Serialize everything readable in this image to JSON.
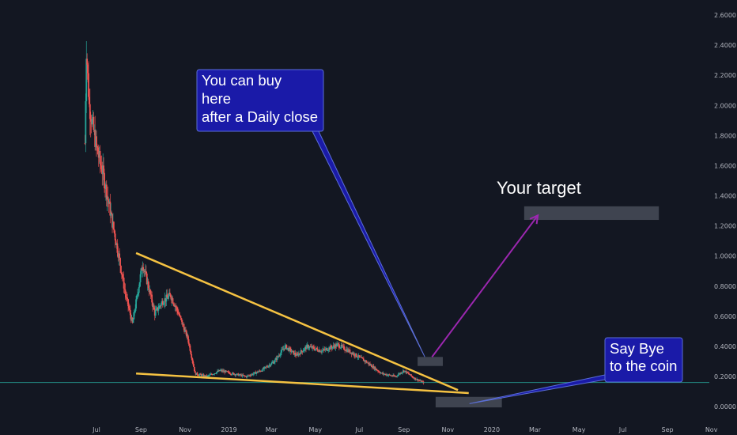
{
  "chart_data": {
    "type": "candlestick",
    "y_ticks": [
      "2.6000",
      "2.4000",
      "2.2000",
      "2.0000",
      "1.8000",
      "1.6000",
      "1.4000",
      "1.2000",
      "1.0000",
      "0.8000",
      "0.6000",
      "0.4000",
      "0.2000",
      "0.0000"
    ],
    "y_tick_values": [
      2.6,
      2.4,
      2.2,
      2.0,
      1.8,
      1.6,
      1.4,
      1.2,
      1.0,
      0.8,
      0.6,
      0.4,
      0.2,
      0.0
    ],
    "ylim": [
      -0.12,
      2.7
    ],
    "x_ticks": [
      {
        "label": "Jul",
        "date": "2018-07-01"
      },
      {
        "label": "Sep",
        "date": "2018-09-01"
      },
      {
        "label": "Nov",
        "date": "2018-11-01"
      },
      {
        "label": "2019",
        "date": "2019-01-01"
      },
      {
        "label": "Mar",
        "date": "2019-03-01"
      },
      {
        "label": "May",
        "date": "2019-05-01"
      },
      {
        "label": "Jul",
        "date": "2019-07-01"
      },
      {
        "label": "Sep",
        "date": "2019-09-01"
      },
      {
        "label": "Nov",
        "date": "2019-11-01"
      },
      {
        "label": "2020",
        "date": "2020-01-01"
      },
      {
        "label": "Mar",
        "date": "2020-03-01"
      },
      {
        "label": "May",
        "date": "2020-05-01"
      },
      {
        "label": "Jul",
        "date": "2020-07-01"
      },
      {
        "label": "Sep",
        "date": "2020-09-01"
      },
      {
        "label": "Nov",
        "date": "2020-11-01"
      }
    ],
    "price_path": [
      {
        "date": "2018-06-15",
        "price": 1.75
      },
      {
        "date": "2018-06-17",
        "price": 2.38
      },
      {
        "date": "2018-06-21",
        "price": 2.0
      },
      {
        "date": "2018-07-01",
        "price": 1.72
      },
      {
        "date": "2018-07-10",
        "price": 1.55
      },
      {
        "date": "2018-07-20",
        "price": 1.3
      },
      {
        "date": "2018-08-01",
        "price": 1.0
      },
      {
        "date": "2018-08-10",
        "price": 0.75
      },
      {
        "date": "2018-08-20",
        "price": 0.55
      },
      {
        "date": "2018-08-27",
        "price": 0.75
      },
      {
        "date": "2018-09-03",
        "price": 0.95
      },
      {
        "date": "2018-09-10",
        "price": 0.82
      },
      {
        "date": "2018-09-20",
        "price": 0.62
      },
      {
        "date": "2018-10-01",
        "price": 0.7
      },
      {
        "date": "2018-10-12",
        "price": 0.74
      },
      {
        "date": "2018-10-22",
        "price": 0.63
      },
      {
        "date": "2018-11-05",
        "price": 0.45
      },
      {
        "date": "2018-11-15",
        "price": 0.22
      },
      {
        "date": "2018-12-01",
        "price": 0.2
      },
      {
        "date": "2018-12-20",
        "price": 0.24
      },
      {
        "date": "2019-01-05",
        "price": 0.22
      },
      {
        "date": "2019-01-25",
        "price": 0.2
      },
      {
        "date": "2019-02-15",
        "price": 0.24
      },
      {
        "date": "2019-03-05",
        "price": 0.3
      },
      {
        "date": "2019-03-20",
        "price": 0.4
      },
      {
        "date": "2019-04-05",
        "price": 0.34
      },
      {
        "date": "2019-04-20",
        "price": 0.4
      },
      {
        "date": "2019-05-10",
        "price": 0.37
      },
      {
        "date": "2019-06-01",
        "price": 0.41
      },
      {
        "date": "2019-06-20",
        "price": 0.36
      },
      {
        "date": "2019-07-10",
        "price": 0.3
      },
      {
        "date": "2019-08-01",
        "price": 0.22
      },
      {
        "date": "2019-08-20",
        "price": 0.2
      },
      {
        "date": "2019-09-01",
        "price": 0.24
      },
      {
        "date": "2019-09-15",
        "price": 0.19
      },
      {
        "date": "2019-09-28",
        "price": 0.16
      }
    ],
    "current_price": 0.16,
    "trendlines": [
      {
        "from": {
          "date": "2018-08-25",
          "price": 1.02
        },
        "to": {
          "date": "2019-11-15",
          "price": 0.11
        }
      },
      {
        "from": {
          "date": "2018-08-25",
          "price": 0.22
        },
        "to": {
          "date": "2019-11-30",
          "price": 0.09
        }
      }
    ],
    "zones": [
      {
        "x_from": "2019-09-20",
        "x_to": "2019-10-25",
        "y_from": 0.27,
        "y_to": 0.33
      },
      {
        "x_from": "2019-10-15",
        "x_to": "2020-01-15",
        "y_from": -0.005,
        "y_to": 0.065
      },
      {
        "x_from": "2020-02-15",
        "x_to": "2020-08-20",
        "y_from": 1.24,
        "y_to": 1.33
      }
    ],
    "arrows": [
      {
        "from": {
          "date": "2019-10-10",
          "price": 0.33
        },
        "to": {
          "date": "2020-03-05",
          "price": 1.27
        },
        "color": "#9c27b0"
      }
    ],
    "annotations": [
      {
        "lines": [
          "You can buy",
          "here",
          "after a Daily close"
        ],
        "target": {
          "date": "2019-09-30",
          "price": 0.33
        }
      },
      {
        "lines": [
          "Say Bye",
          "to the coin"
        ],
        "target": {
          "date": "2019-12-01",
          "price": 0.02
        }
      }
    ],
    "label": "Your target",
    "colors": {
      "background": "#131722",
      "up": "#26a69a",
      "down": "#ef5350",
      "trendline": "#f5c242",
      "zone": "#454955",
      "arrow": "#9c27b0",
      "callout_fill": "#1a1aa8",
      "callout_border": "#5b6fd6",
      "price_line": "#26a69a"
    }
  }
}
